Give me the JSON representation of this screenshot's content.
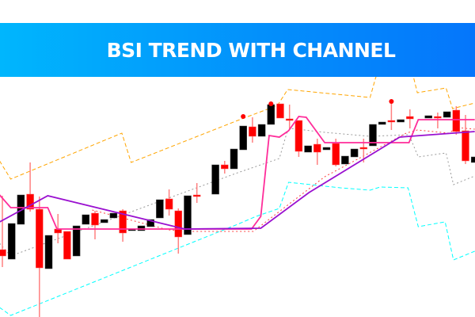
{
  "title": "BSI TREND WITH CHANNEL",
  "colors": {
    "bull_candle": "#000000",
    "bear_candle": "#ff0000",
    "wick": "#ff8080",
    "upper_channel": "#ffa500",
    "lower_channel": "#00ffff",
    "middle_line": "#999999",
    "pink_line": "#ff2d9a",
    "purple_line": "#9a10d0",
    "red_dotted": "#ff4040",
    "banner_start": "#00b6fd",
    "banner_end": "#0576fb"
  },
  "chart_data": {
    "type": "candlestick",
    "title": "BSI TREND WITH CHANNEL",
    "axes_visible": false,
    "grid": false,
    "value_units": "relative price (no axis printed)",
    "candles": [
      [
        0,
        85,
        153,
        63,
        77
      ],
      [
        1,
        73,
        118,
        73,
        118
      ],
      [
        2,
        117,
        154,
        117,
        154
      ],
      [
        3,
        155,
        195,
        133,
        136
      ],
      [
        4,
        136,
        152,
        0,
        62
      ],
      [
        5,
        61,
        103,
        61,
        103
      ],
      [
        6,
        111,
        130,
        93,
        106
      ],
      [
        7,
        108,
        108,
        73,
        73
      ],
      [
        8,
        77,
        115,
        77,
        115
      ],
      [
        9,
        117,
        129,
        117,
        129
      ],
      [
        10,
        131,
        134,
        98,
        116
      ],
      [
        11,
        119,
        123,
        119,
        123
      ],
      [
        12,
        125,
        131,
        125,
        131
      ],
      [
        13,
        134,
        136,
        95,
        106
      ],
      [
        14,
        109,
        111,
        109,
        111
      ],
      [
        15,
        109,
        115,
        109,
        115
      ],
      [
        16,
        114,
        123,
        114,
        123
      ],
      [
        17,
        125,
        148,
        125,
        148
      ],
      [
        18,
        149,
        161,
        128,
        136
      ],
      [
        19,
        134,
        137,
        80,
        101
      ],
      [
        20,
        104,
        153,
        104,
        153
      ],
      [
        21,
        154,
        169,
        144,
        153
      ],
      [
        23,
        155,
        192,
        155,
        192
      ],
      [
        24,
        192,
        197,
        181,
        187
      ],
      [
        25,
        187,
        212,
        187,
        212
      ],
      [
        26,
        211,
        241,
        211,
        241
      ],
      [
        27,
        240,
        252,
        220,
        228
      ],
      [
        28,
        228,
        243,
        228,
        243
      ],
      [
        29,
        243,
        268,
        243,
        268
      ],
      [
        30,
        269,
        269,
        251,
        251
      ],
      [
        31,
        250,
        268,
        237,
        249
      ],
      [
        32,
        248,
        248,
        202,
        209
      ],
      [
        33,
        208,
        216,
        208,
        216
      ],
      [
        34,
        218,
        225,
        192,
        208
      ],
      [
        35,
        211,
        214,
        211,
        214
      ],
      [
        36,
        219,
        225,
        190,
        192
      ],
      [
        37,
        193,
        203,
        193,
        203
      ],
      [
        38,
        202,
        212,
        202,
        212
      ],
      [
        39,
        214,
        225,
        195,
        212
      ],
      [
        40,
        216,
        243,
        216,
        243
      ],
      [
        41,
        243,
        246,
        243,
        246
      ],
      [
        42,
        248,
        272,
        236,
        246
      ],
      [
        43,
        246,
        249,
        246,
        249
      ],
      [
        44,
        253,
        262,
        238,
        250
      ],
      [
        46,
        251,
        254,
        251,
        254
      ],
      [
        47,
        253,
        258,
        238,
        252
      ],
      [
        48,
        252,
        259,
        252,
        259
      ],
      [
        49,
        261,
        266,
        230,
        234
      ],
      [
        50,
        235,
        255,
        193,
        197
      ],
      [
        51,
        195,
        202,
        195,
        202
      ]
    ],
    "candle_format": [
      "bar",
      "open",
      "high",
      "low",
      "close"
    ],
    "signal_dots": [
      [
        26,
        253
      ],
      [
        29,
        269
      ],
      [
        42,
        272
      ]
    ],
    "lines": [
      {
        "key": "upper_channel",
        "style": "dashed",
        "points": [
          [
            -0.3,
            197
          ],
          [
            0.9,
            174
          ],
          [
            12.9,
            232
          ],
          [
            13.9,
            195
          ],
          [
            25.4,
            248
          ],
          [
            29.7,
            267
          ],
          [
            30.8,
            287
          ],
          [
            39.7,
            277
          ],
          [
            40.3,
            302
          ],
          [
            41.5,
            330
          ],
          [
            43.5,
            330
          ],
          [
            44.4,
            302
          ],
          [
            44.8,
            283
          ],
          [
            47.9,
            289
          ],
          [
            48.6,
            263
          ],
          [
            51,
            270
          ]
        ]
      },
      {
        "key": "lower_channel",
        "style": "dashed",
        "points": [
          [
            -0.3,
            12
          ],
          [
            0.9,
            2
          ],
          [
            25.4,
            117
          ],
          [
            27.4,
            127
          ],
          [
            29.9,
            137
          ],
          [
            30.9,
            170
          ],
          [
            36.5,
            163
          ],
          [
            39.7,
            160
          ],
          [
            40.8,
            164
          ],
          [
            43.8,
            163
          ],
          [
            44.9,
            114
          ],
          [
            47.8,
            120
          ],
          [
            48.7,
            72
          ],
          [
            51,
            83
          ]
        ]
      },
      {
        "key": "middle_line",
        "style": "dotted",
        "points": [
          [
            -0.3,
            93
          ],
          [
            0.9,
            77
          ],
          [
            25.4,
            182
          ],
          [
            29.9,
            200
          ],
          [
            30.7,
            232
          ],
          [
            31.1,
            238
          ],
          [
            34.8,
            233
          ],
          [
            39.7,
            228
          ],
          [
            43.9,
            230
          ],
          [
            44.9,
            202
          ],
          [
            47.9,
            207
          ],
          [
            48.7,
            167
          ],
          [
            51,
            178
          ]
        ]
      },
      {
        "key": "red_dotted",
        "style": "dotted",
        "points": [
          [
            9.7,
            135
          ],
          [
            17.9,
            110
          ],
          [
            19.7,
            108
          ],
          [
            27.1,
            108
          ],
          [
            34.8,
            177
          ],
          [
            43.6,
            232
          ],
          [
            44.8,
            236
          ],
          [
            48.2,
            232
          ],
          [
            49.1,
            239
          ],
          [
            51,
            237
          ]
        ]
      },
      {
        "key": "pink_line",
        "style": "solid",
        "points": [
          [
            -0.3,
            154
          ],
          [
            0.9,
            138
          ],
          [
            4.9,
            138
          ],
          [
            5.9,
            111
          ],
          [
            26.9,
            111
          ],
          [
            27.9,
            127
          ],
          [
            28.8,
            229
          ],
          [
            29.9,
            227
          ],
          [
            30.9,
            235
          ],
          [
            32,
            253
          ],
          [
            32.8,
            252
          ],
          [
            34.8,
            220
          ],
          [
            43.9,
            220
          ],
          [
            44.9,
            249
          ],
          [
            51,
            249
          ]
        ]
      },
      {
        "key": "purple_line",
        "style": "solid",
        "points": [
          [
            -0.3,
            120
          ],
          [
            4.9,
            153
          ],
          [
            19.7,
            111
          ],
          [
            27.9,
            112
          ],
          [
            33.1,
            157
          ],
          [
            42.9,
            227
          ],
          [
            44,
            228
          ],
          [
            51,
            234
          ]
        ]
      }
    ]
  }
}
